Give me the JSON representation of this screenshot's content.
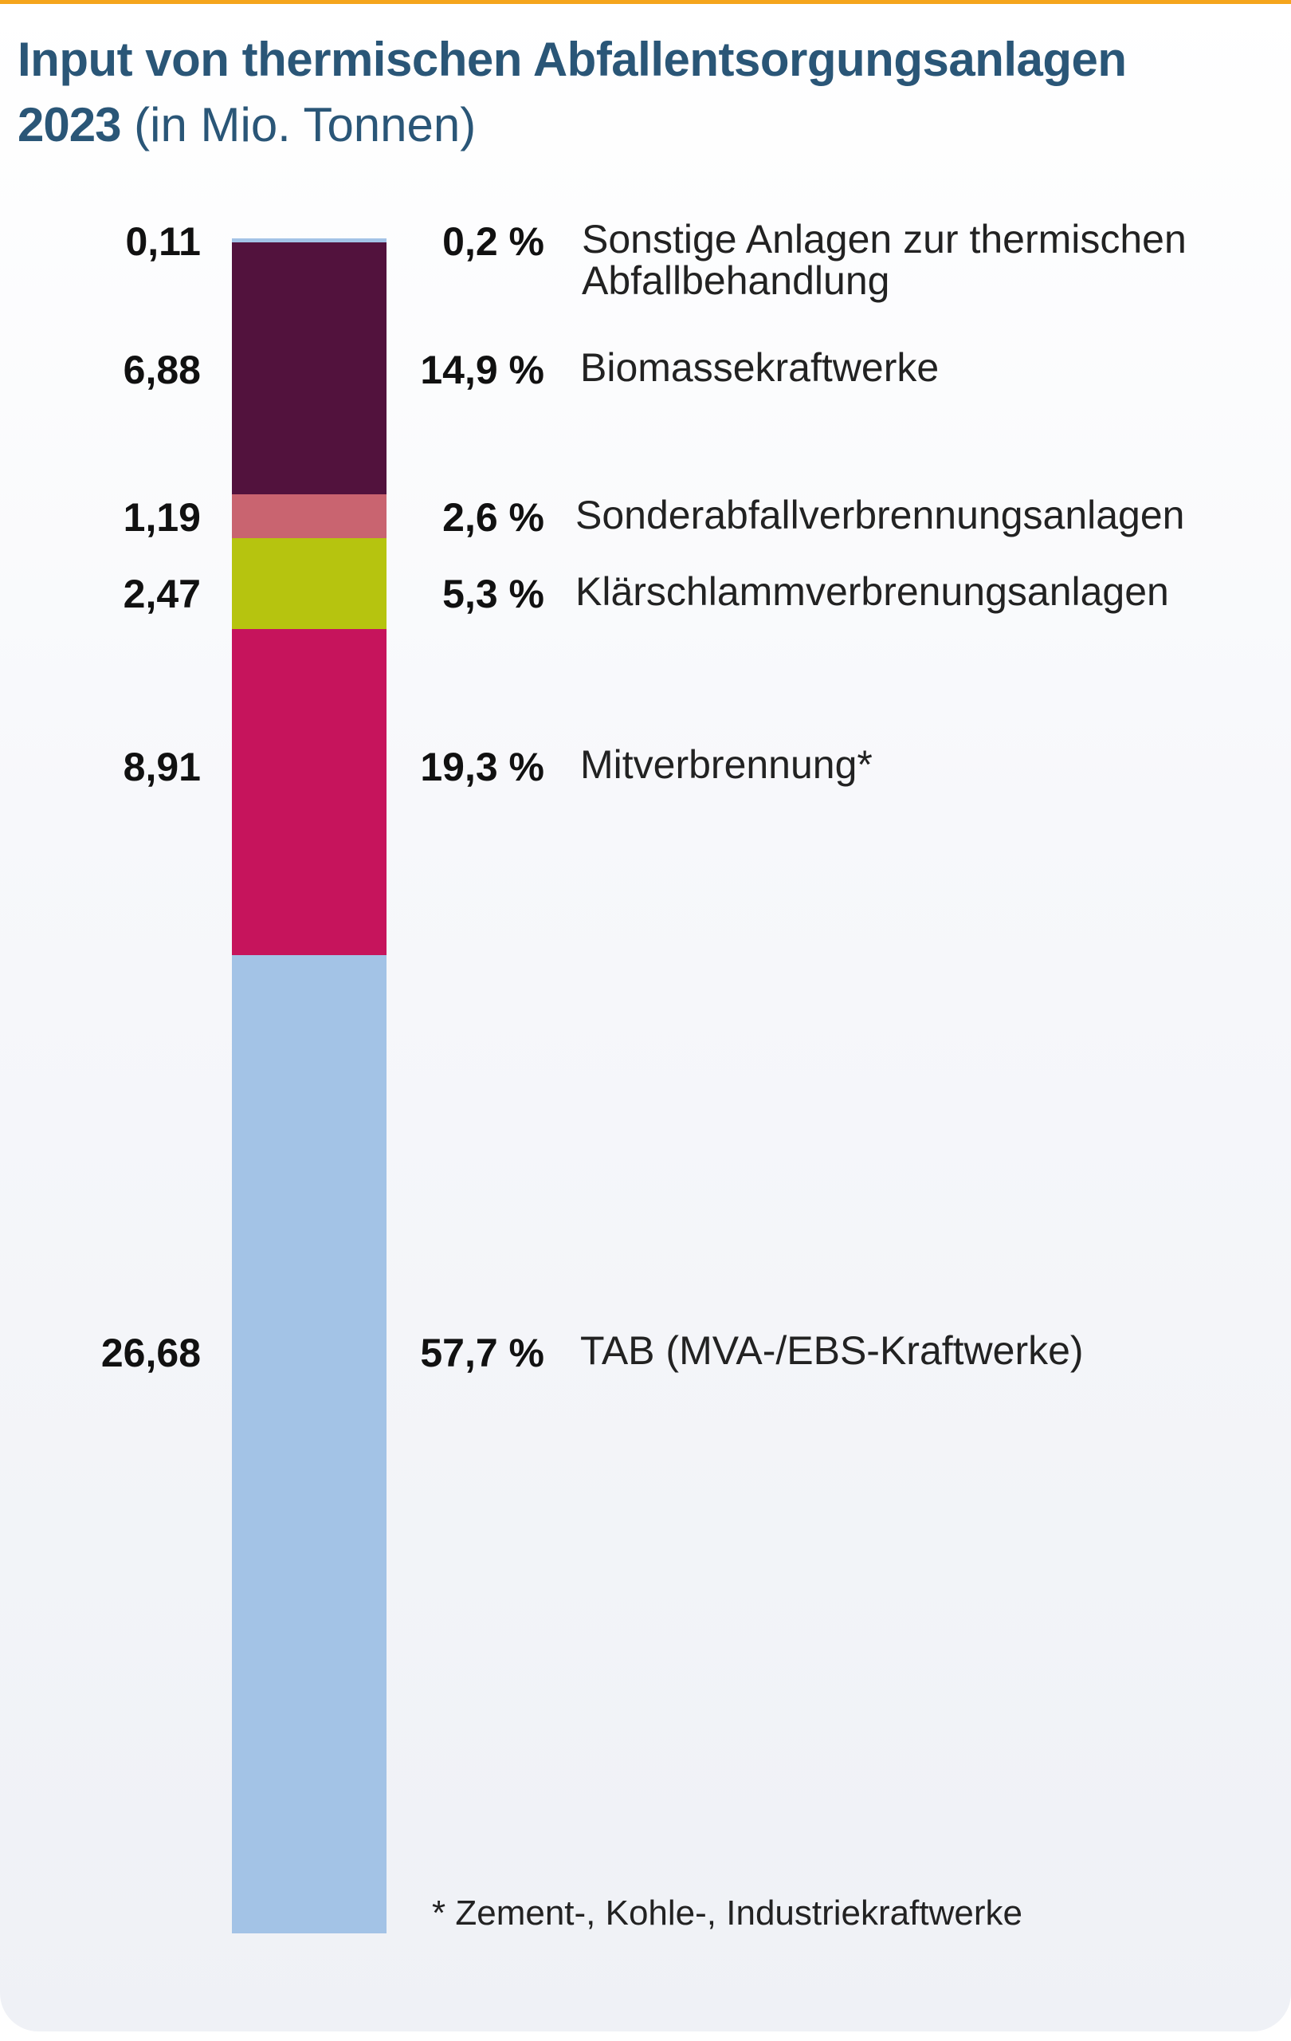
{
  "header": {
    "title": "Input von thermischen Abfallentsorgungsanlagen",
    "year": "2023",
    "unit": "(in Mio. Tonnen)"
  },
  "chart_data": {
    "type": "bar",
    "stacked": true,
    "title": "Input von thermischen Abfallentsorgungsanlagen 2023 (in Mio. Tonnen)",
    "categories": [
      "Sonstige Anlagen zur thermischen Abfallbehandlung",
      "Biomassekraftwerke",
      "Sonderabfallverbrennungsanlagen",
      "Klärschlammverbrenungsanlagen",
      "Mitverbrennung*",
      "TAB (MVA-/EBS-Kraftwerke)"
    ],
    "series": [
      {
        "name": "Sonstige Anlagen zur thermischen Abfallbehandlung",
        "value": 0.11,
        "value_label": "0,11",
        "pct_label": "0,2 %",
        "color": "#a3c3e6"
      },
      {
        "name": "Biomassekraftwerke",
        "value": 6.88,
        "value_label": "6,88",
        "pct_label": "14,9 %",
        "color": "#52123d"
      },
      {
        "name": "Sonderabfallverbrennungsanlagen",
        "value": 1.19,
        "value_label": "1,19",
        "pct_label": "2,6 %",
        "color": "#c96470"
      },
      {
        "name": "Klärschlammverbrenungsanlagen",
        "value": 2.47,
        "value_label": "2,47",
        "pct_label": "5,3 %",
        "color": "#b6c40f"
      },
      {
        "name": "Mitverbrennung*",
        "value": 8.91,
        "value_label": "8,91",
        "pct_label": "19,3 %",
        "color": "#c6145c"
      },
      {
        "name": "TAB (MVA-/EBS-Kraftwerke)",
        "value": 26.68,
        "value_label": "26,68",
        "pct_label": "57,7 %",
        "color": "#a3c3e6"
      }
    ],
    "footnote": "* Zement-, Kohle-, Industriekraftwerke"
  }
}
